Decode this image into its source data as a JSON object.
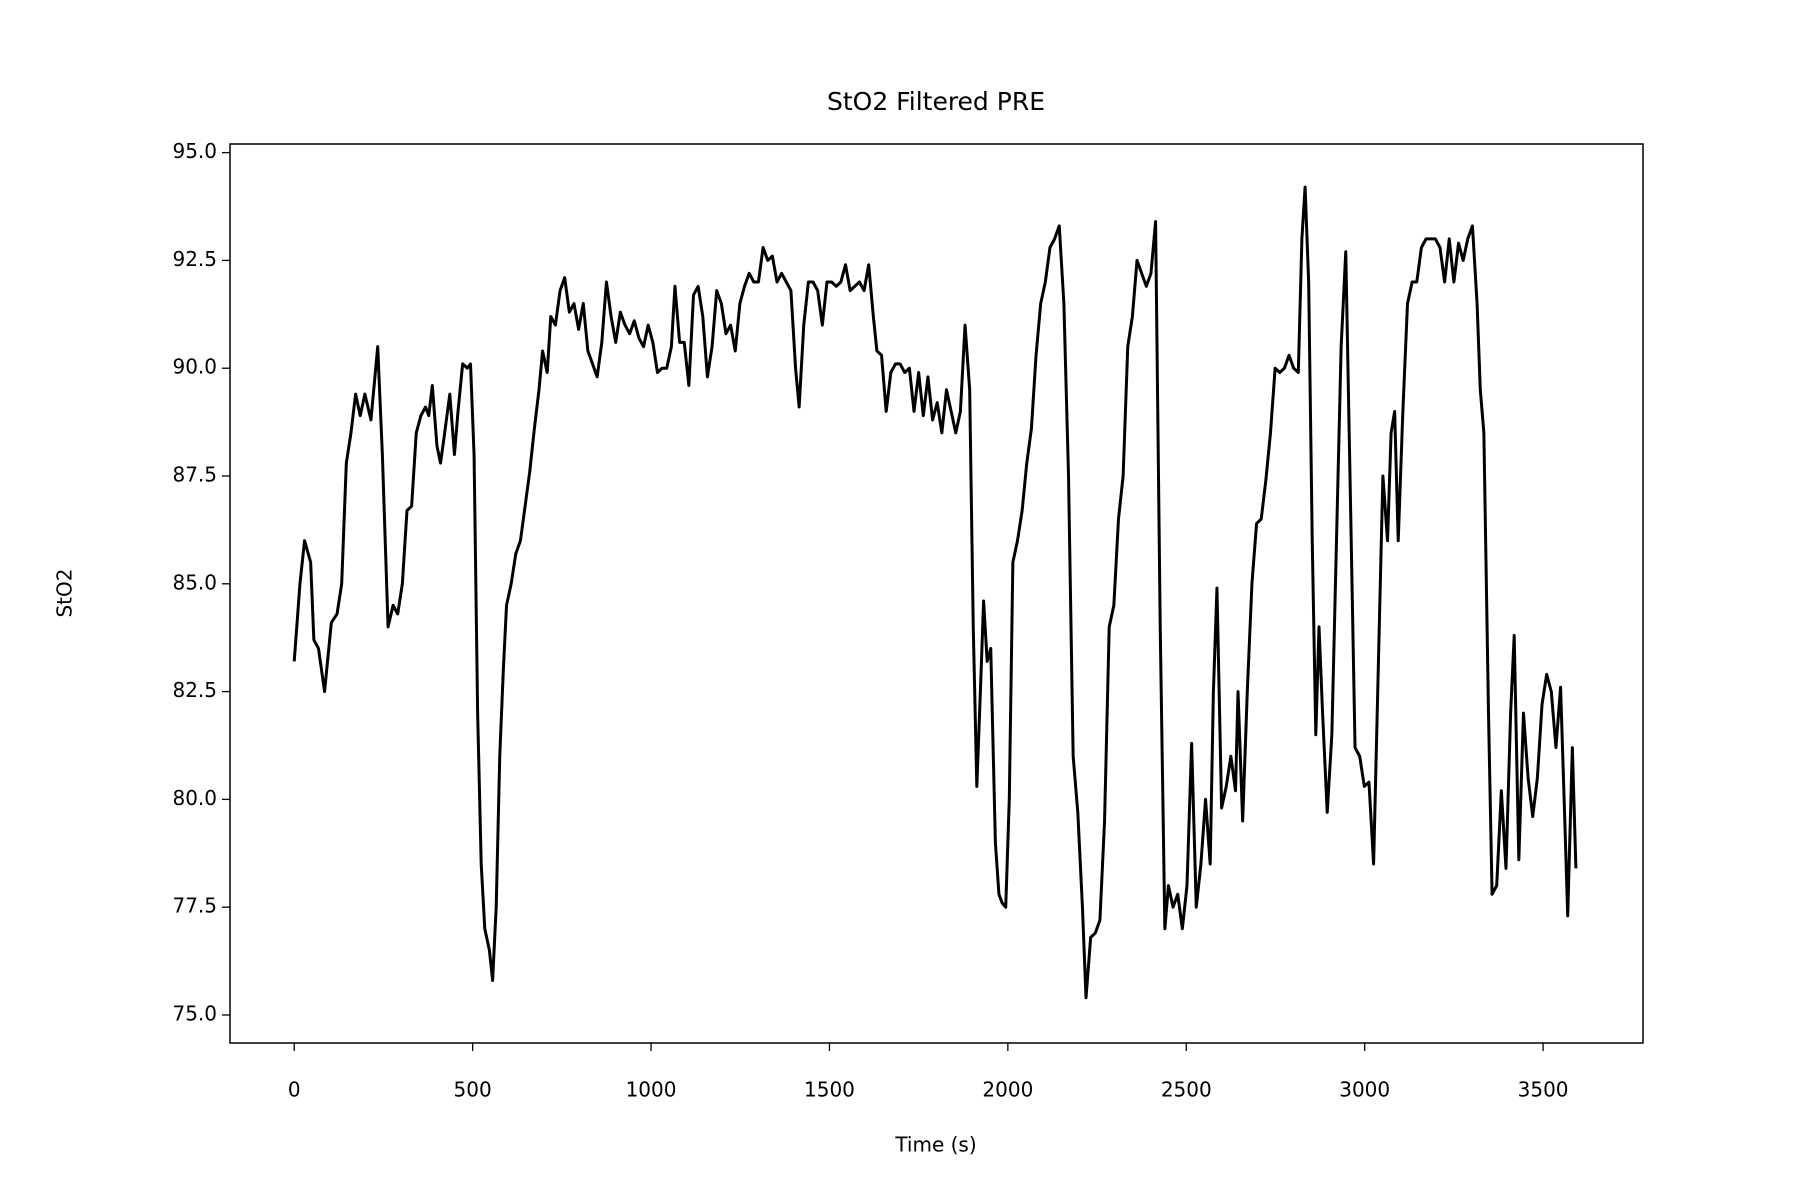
{
  "chart_data": {
    "type": "line",
    "title": "StO2 Filtered PRE",
    "x_label": "Time (s)",
    "y_label": "StO2",
    "color": "#000000",
    "grid": false,
    "xlim": [
      -180,
      3780
    ],
    "xticks": [
      0,
      500,
      1000,
      1500,
      2000,
      2500,
      3000,
      3500
    ],
    "ylim": [
      74.35,
      95.2
    ],
    "yticks": [
      {
        "value": 75,
        "label": "75.0"
      },
      {
        "value": 77.5,
        "label": "77.5"
      },
      {
        "value": 80,
        "label": "80.0"
      },
      {
        "value": 82.5,
        "label": "82.5"
      },
      {
        "value": 85,
        "label": "85.0"
      },
      {
        "value": 87.5,
        "label": "87.5"
      },
      {
        "value": 90,
        "label": "90.0"
      },
      {
        "value": 92.5,
        "label": "92.5"
      },
      {
        "value": 95,
        "label": "95.0"
      }
    ],
    "x": [
      0,
      16,
      29,
      46,
      55,
      68,
      85,
      104,
      120,
      133,
      146,
      159,
      172,
      185,
      198,
      215,
      234,
      247,
      263,
      277,
      290,
      303,
      316,
      329,
      342,
      355,
      368,
      377,
      387,
      400,
      410,
      420,
      436,
      449,
      459,
      472,
      485,
      494,
      504,
      514,
      524,
      534,
      547,
      556,
      566,
      576,
      586,
      595,
      608,
      621,
      634,
      647,
      660,
      673,
      686,
      696,
      709,
      719,
      732,
      745,
      758,
      771,
      784,
      797,
      810,
      823,
      836,
      849,
      862,
      875,
      888,
      901,
      914,
      927,
      940,
      953,
      966,
      979,
      992,
      1005,
      1018,
      1031,
      1044,
      1057,
      1067,
      1080,
      1093,
      1106,
      1119,
      1132,
      1145,
      1158,
      1171,
      1184,
      1197,
      1210,
      1223,
      1236,
      1249,
      1262,
      1275,
      1288,
      1301,
      1314,
      1327,
      1340,
      1353,
      1366,
      1379,
      1392,
      1405,
      1415,
      1428,
      1441,
      1454,
      1467,
      1480,
      1493,
      1506,
      1519,
      1532,
      1545,
      1558,
      1571,
      1584,
      1597,
      1610,
      1623,
      1633,
      1646,
      1659,
      1672,
      1685,
      1698,
      1711,
      1724,
      1737,
      1750,
      1763,
      1776,
      1789,
      1802,
      1815,
      1828,
      1841,
      1854,
      1867,
      1880,
      1893,
      1903,
      1913,
      1923,
      1932,
      1942,
      1952,
      1965,
      1975,
      1984,
      1994,
      2004,
      2014,
      2027,
      2040,
      2053,
      2066,
      2079,
      2092,
      2105,
      2118,
      2131,
      2144,
      2157,
      2170,
      2183,
      2196,
      2209,
      2219,
      2232,
      2245,
      2258,
      2271,
      2284,
      2297,
      2310,
      2323,
      2336,
      2349,
      2362,
      2375,
      2388,
      2401,
      2414,
      2427,
      2440,
      2450,
      2463,
      2476,
      2489,
      2502,
      2515,
      2528,
      2541,
      2554,
      2567,
      2576,
      2586,
      2599,
      2612,
      2625,
      2638,
      2645,
      2658,
      2671,
      2684,
      2697,
      2710,
      2723,
      2736,
      2749,
      2762,
      2775,
      2788,
      2801,
      2814,
      2824,
      2833,
      2843,
      2853,
      2863,
      2872,
      2882,
      2895,
      2908,
      2921,
      2934,
      2947,
      2960,
      2973,
      2986,
      2999,
      3012,
      3025,
      3038,
      3051,
      3064,
      3074,
      3084,
      3094,
      3107,
      3120,
      3133,
      3146,
      3159,
      3172,
      3185,
      3198,
      3211,
      3224,
      3237,
      3250,
      3263,
      3276,
      3289,
      3302,
      3315,
      3324,
      3334,
      3347,
      3357,
      3370,
      3383,
      3396,
      3409,
      3419,
      3432,
      3445,
      3458,
      3471,
      3484,
      3497,
      3510,
      3523,
      3536,
      3549,
      3559,
      3569,
      3582,
      3592
    ],
    "values": [
      83.2,
      85.0,
      86.0,
      85.5,
      83.7,
      83.5,
      82.5,
      84.1,
      84.3,
      85.0,
      87.8,
      88.5,
      89.4,
      88.9,
      89.4,
      88.8,
      90.5,
      88.0,
      84.0,
      84.5,
      84.3,
      85.0,
      86.7,
      86.8,
      88.5,
      88.9,
      89.1,
      88.9,
      89.6,
      88.2,
      87.8,
      88.4,
      89.4,
      88.0,
      89.0,
      90.1,
      90.0,
      90.1,
      88.0,
      82.0,
      78.5,
      77.0,
      76.5,
      75.8,
      77.5,
      81.0,
      83.0,
      84.5,
      85.0,
      85.7,
      86.0,
      86.8,
      87.6,
      88.6,
      89.5,
      90.4,
      89.9,
      91.2,
      91.0,
      91.8,
      92.1,
      91.3,
      91.5,
      90.9,
      91.5,
      90.4,
      90.1,
      89.8,
      90.6,
      92.0,
      91.2,
      90.6,
      91.3,
      91.0,
      90.8,
      91.1,
      90.7,
      90.5,
      91.0,
      90.6,
      89.9,
      90.0,
      90.0,
      90.5,
      91.9,
      90.6,
      90.6,
      89.6,
      91.7,
      91.9,
      91.2,
      89.8,
      90.5,
      91.8,
      91.5,
      90.8,
      91.0,
      90.4,
      91.5,
      91.9,
      92.2,
      92.0,
      92.0,
      92.8,
      92.5,
      92.6,
      92.0,
      92.2,
      92.0,
      91.8,
      90.0,
      89.1,
      91.0,
      92.0,
      92.0,
      91.8,
      91.0,
      92.0,
      92.0,
      91.9,
      92.0,
      92.4,
      91.8,
      91.9,
      92.0,
      91.8,
      92.4,
      91.2,
      90.4,
      90.3,
      89.0,
      89.9,
      90.1,
      90.1,
      89.9,
      90.0,
      89.0,
      89.9,
      88.9,
      89.8,
      88.8,
      89.2,
      88.5,
      89.5,
      89.0,
      88.5,
      89.0,
      91.0,
      89.5,
      84.0,
      80.3,
      82.5,
      84.6,
      83.2,
      83.5,
      79.0,
      77.8,
      77.6,
      77.5,
      80.0,
      85.5,
      86.0,
      86.7,
      87.8,
      88.6,
      90.3,
      91.5,
      92.0,
      92.8,
      93.0,
      93.3,
      91.5,
      87.5,
      81.0,
      79.7,
      77.5,
      75.4,
      76.8,
      76.9,
      77.2,
      79.5,
      84.0,
      84.5,
      86.5,
      87.5,
      90.5,
      91.2,
      92.5,
      92.2,
      91.9,
      92.2,
      93.4,
      84.0,
      77.0,
      78.0,
      77.5,
      77.8,
      77.0,
      78.0,
      81.3,
      77.5,
      78.5,
      80.0,
      78.5,
      82.5,
      84.9,
      79.8,
      80.3,
      81.0,
      80.2,
      82.5,
      79.5,
      82.5,
      85.0,
      86.4,
      86.5,
      87.4,
      88.5,
      90.0,
      89.9,
      90.0,
      90.3,
      90.0,
      89.9,
      93.0,
      94.2,
      92.0,
      86.0,
      81.5,
      84.0,
      82.0,
      79.7,
      81.5,
      86.0,
      90.5,
      92.7,
      87.0,
      81.2,
      81.0,
      80.3,
      80.4,
      78.5,
      83.0,
      87.5,
      86.0,
      88.5,
      89.0,
      86.0,
      89.0,
      91.5,
      92.0,
      92.0,
      92.8,
      93.0,
      93.0,
      93.0,
      92.8,
      92.0,
      93.0,
      92.0,
      92.9,
      92.5,
      93.0,
      93.3,
      91.5,
      89.5,
      88.5,
      82.0,
      77.8,
      78.0,
      80.2,
      78.4,
      82.0,
      83.8,
      78.6,
      82.0,
      80.5,
      79.6,
      80.5,
      82.2,
      82.9,
      82.5,
      81.2,
      82.6,
      80.0,
      77.3,
      81.2,
      78.4
    ]
  }
}
